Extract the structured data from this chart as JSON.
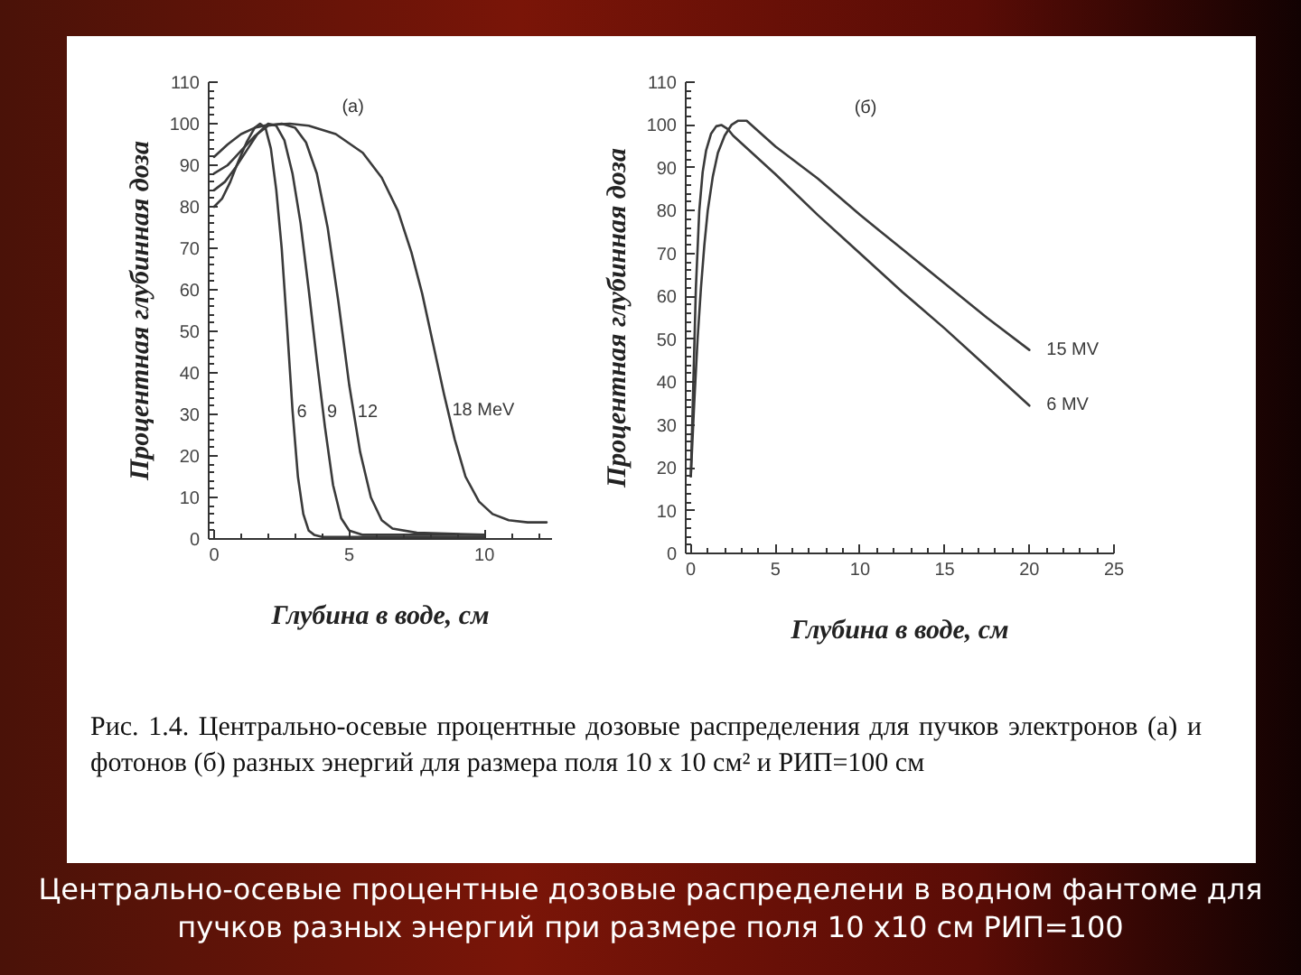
{
  "chart_data": [
    {
      "type": "line",
      "title": "(а)",
      "xlabel": "Глубина в воде, см",
      "ylabel": "Процентная глубинная доза",
      "xlim": [
        -0.2,
        12.5
      ],
      "ylim": [
        0,
        110
      ],
      "xticks": [
        0,
        {
          "value": 1,
          "label": null
        },
        {
          "value": 2,
          "label": null
        },
        {
          "value": 3,
          "label": null
        },
        {
          "value": 4,
          "label": null
        },
        5,
        {
          "value": 6,
          "label": null
        },
        {
          "value": 7,
          "label": null
        },
        {
          "value": 8,
          "label": null
        },
        {
          "value": 9,
          "label": null
        },
        10,
        {
          "value": 11,
          "label": null
        },
        {
          "value": 12,
          "label": null
        }
      ],
      "yticks": [
        0,
        {
          "value": 2,
          "label": null
        },
        {
          "value": 4,
          "label": null
        },
        {
          "value": 6,
          "label": null
        },
        {
          "value": 8,
          "label": null
        },
        10,
        {
          "value": 12,
          "label": null
        },
        {
          "value": 14,
          "label": null
        },
        {
          "value": 16,
          "label": null
        },
        {
          "value": 18,
          "label": null
        },
        20,
        {
          "value": 22,
          "label": null
        },
        {
          "value": 24,
          "label": null
        },
        {
          "value": 26,
          "label": null
        },
        {
          "value": 28,
          "label": null
        },
        30,
        {
          "value": 32,
          "label": null
        },
        {
          "value": 34,
          "label": null
        },
        {
          "value": 36,
          "label": null
        },
        {
          "value": 38,
          "label": null
        },
        40,
        {
          "value": 42,
          "label": null
        },
        {
          "value": 44,
          "label": null
        },
        {
          "value": 46,
          "label": null
        },
        {
          "value": 48,
          "label": null
        },
        50,
        {
          "value": 52,
          "label": null
        },
        {
          "value": 54,
          "label": null
        },
        {
          "value": 56,
          "label": null
        },
        {
          "value": 58,
          "label": null
        },
        60,
        {
          "value": 62,
          "label": null
        },
        {
          "value": 64,
          "label": null
        },
        {
          "value": 66,
          "label": null
        },
        {
          "value": 68,
          "label": null
        },
        70,
        {
          "value": 72,
          "label": null
        },
        {
          "value": 74,
          "label": null
        },
        {
          "value": 76,
          "label": null
        },
        {
          "value": 78,
          "label": null
        },
        80,
        {
          "value": 82,
          "label": null
        },
        {
          "value": 84,
          "label": null
        },
        {
          "value": 86,
          "label": null
        },
        {
          "value": 88,
          "label": null
        },
        90,
        {
          "value": 92,
          "label": null
        },
        {
          "value": 94,
          "label": null
        },
        {
          "value": 96,
          "label": null
        },
        {
          "value": 98,
          "label": null
        },
        100,
        {
          "value": 102,
          "label": null
        },
        {
          "value": 104,
          "label": null
        },
        {
          "value": 106,
          "label": null
        },
        {
          "value": 108,
          "label": null
        },
        110
      ],
      "series": [
        {
          "name": "6",
          "color": "#3a3a3a",
          "x": [
            0,
            0.3,
            0.6,
            0.9,
            1.2,
            1.5,
            1.7,
            1.9,
            2.1,
            2.3,
            2.5,
            2.7,
            2.9,
            3.1,
            3.3,
            3.5,
            3.7,
            4.0,
            6,
            8,
            10
          ],
          "values": [
            80,
            82,
            86,
            91,
            95.5,
            99,
            100,
            99,
            94,
            84,
            70,
            51,
            31,
            15,
            6,
            2,
            1,
            0.5,
            0.5,
            0.5,
            0.5
          ]
        },
        {
          "name": "9",
          "color": "#3a3a3a",
          "x": [
            0,
            0.4,
            0.8,
            1.2,
            1.6,
            2.0,
            2.3,
            2.6,
            2.9,
            3.2,
            3.5,
            3.8,
            4.1,
            4.4,
            4.7,
            5.0,
            5.5,
            7,
            10
          ],
          "values": [
            84,
            86,
            89.5,
            93.5,
            97.5,
            100,
            99.5,
            96,
            88,
            76,
            60,
            43,
            27,
            13,
            5,
            2,
            1,
            1,
            1
          ]
        },
        {
          "name": "12",
          "color": "#3a3a3a",
          "x": [
            0,
            0.5,
            1,
            1.5,
            2,
            2.5,
            3.0,
            3.4,
            3.8,
            4.2,
            4.6,
            5.0,
            5.4,
            5.8,
            6.2,
            6.6,
            7.5,
            10
          ],
          "values": [
            88,
            90,
            93.5,
            97,
            99.5,
            100,
            99,
            95.5,
            88,
            75,
            57,
            37,
            21,
            10,
            4.5,
            2.5,
            1.5,
            1
          ]
        },
        {
          "name": "18 MeV",
          "color": "#3a3a3a",
          "x": [
            0,
            0.5,
            1,
            1.5,
            2,
            2.8,
            3.5,
            4.5,
            5.5,
            6.2,
            6.8,
            7.3,
            7.7,
            8.1,
            8.5,
            8.9,
            9.3,
            9.8,
            10.3,
            10.9,
            11.6,
            12.3
          ],
          "values": [
            92,
            95,
            97.5,
            99,
            99.7,
            100,
            99.5,
            97.5,
            93,
            87,
            79,
            69,
            59,
            47,
            35,
            24,
            15,
            9,
            6,
            4.5,
            4,
            4
          ]
        }
      ]
    },
    {
      "type": "line",
      "title": "(б)",
      "xlabel": "Глубина в воде, см",
      "ylabel": "Процентная глубинная доза",
      "xlim": [
        -0.3,
        25
      ],
      "ylim": [
        0,
        110
      ],
      "xticks": [
        0,
        {
          "value": 1,
          "label": null
        },
        {
          "value": 2,
          "label": null
        },
        {
          "value": 3,
          "label": null
        },
        {
          "value": 4,
          "label": null
        },
        5,
        {
          "value": 6,
          "label": null
        },
        {
          "value": 7,
          "label": null
        },
        {
          "value": 8,
          "label": null
        },
        {
          "value": 9,
          "label": null
        },
        10,
        {
          "value": 11,
          "label": null
        },
        {
          "value": 12,
          "label": null
        },
        {
          "value": 13,
          "label": null
        },
        {
          "value": 14,
          "label": null
        },
        15,
        {
          "value": 16,
          "label": null
        },
        {
          "value": 17,
          "label": null
        },
        {
          "value": 18,
          "label": null
        },
        {
          "value": 19,
          "label": null
        },
        20,
        {
          "value": 21,
          "label": null
        },
        {
          "value": 22,
          "label": null
        },
        {
          "value": 23,
          "label": null
        },
        {
          "value": 24,
          "label": null
        },
        25
      ],
      "yticks": [
        0,
        {
          "value": 2,
          "label": null
        },
        {
          "value": 4,
          "label": null
        },
        {
          "value": 6,
          "label": null
        },
        {
          "value": 8,
          "label": null
        },
        10,
        {
          "value": 12,
          "label": null
        },
        {
          "value": 14,
          "label": null
        },
        {
          "value": 16,
          "label": null
        },
        {
          "value": 18,
          "label": null
        },
        20,
        {
          "value": 22,
          "label": null
        },
        {
          "value": 24,
          "label": null
        },
        {
          "value": 26,
          "label": null
        },
        {
          "value": 28,
          "label": null
        },
        30,
        {
          "value": 32,
          "label": null
        },
        {
          "value": 34,
          "label": null
        },
        {
          "value": 36,
          "label": null
        },
        {
          "value": 38,
          "label": null
        },
        40,
        {
          "value": 42,
          "label": null
        },
        {
          "value": 44,
          "label": null
        },
        {
          "value": 46,
          "label": null
        },
        {
          "value": 48,
          "label": null
        },
        50,
        {
          "value": 52,
          "label": null
        },
        {
          "value": 54,
          "label": null
        },
        {
          "value": 56,
          "label": null
        },
        {
          "value": 58,
          "label": null
        },
        60,
        {
          "value": 62,
          "label": null
        },
        {
          "value": 64,
          "label": null
        },
        {
          "value": 66,
          "label": null
        },
        {
          "value": 68,
          "label": null
        },
        70,
        {
          "value": 72,
          "label": null
        },
        {
          "value": 74,
          "label": null
        },
        {
          "value": 76,
          "label": null
        },
        {
          "value": 78,
          "label": null
        },
        80,
        {
          "value": 82,
          "label": null
        },
        {
          "value": 84,
          "label": null
        },
        {
          "value": 86,
          "label": null
        },
        {
          "value": 88,
          "label": null
        },
        90,
        {
          "value": 92,
          "label": null
        },
        {
          "value": 94,
          "label": null
        },
        {
          "value": 96,
          "label": null
        },
        {
          "value": 98,
          "label": null
        },
        100,
        {
          "value": 102,
          "label": null
        },
        {
          "value": 104,
          "label": null
        },
        {
          "value": 106,
          "label": null
        },
        {
          "value": 108,
          "label": null
        },
        110
      ],
      "series": [
        {
          "name": "15 MV",
          "color": "#3a3a3a",
          "x": [
            0,
            0.2,
            0.4,
            0.6,
            0.8,
            1.0,
            1.3,
            1.6,
            2.0,
            2.4,
            2.8,
            3.3,
            4,
            5,
            7.5,
            10,
            12.5,
            15,
            17.5,
            20
          ],
          "values": [
            18,
            35,
            50,
            62,
            72,
            80,
            88,
            93.5,
            97.5,
            100,
            101,
            101,
            98.5,
            95,
            87.5,
            79,
            71,
            63,
            55,
            47.5
          ]
        },
        {
          "name": "6 MV",
          "color": "#3a3a3a",
          "x": [
            0,
            0.15,
            0.3,
            0.5,
            0.7,
            0.9,
            1.2,
            1.5,
            1.8,
            2.2,
            2.5,
            5,
            7.5,
            10,
            12.5,
            15,
            17.5,
            20
          ],
          "values": [
            18,
            40,
            62,
            80,
            89,
            94,
            98,
            99.7,
            100,
            99,
            97.5,
            88.5,
            79,
            70,
            61,
            52.5,
            43.5,
            34.5
          ]
        }
      ]
    },
    {
      "type": "other",
      "annotations": [
        "Рис. 1.4. Центрально-осевые процентные дозовые распределения для пучков электронов (а) и фотонов (б) разных энергий для размера поля 10 x 10 см² и РИП=100 см",
        "Центрально-осевые процентные дозовые распределени в водном фантоме для пучков разных энергий при размере поля 10 х10 см РИП=100"
      ]
    }
  ]
}
